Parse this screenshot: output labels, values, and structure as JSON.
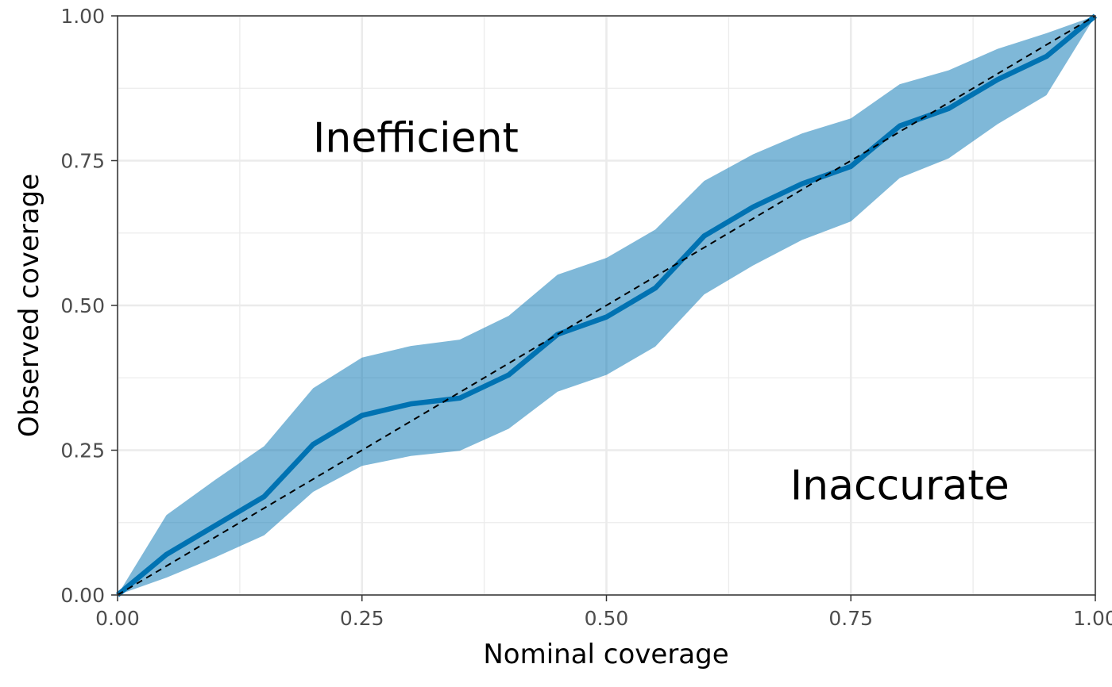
{
  "chart_data": {
    "type": "line",
    "title": "",
    "xlabel": "Nominal coverage",
    "ylabel": "Observed coverage",
    "xlim": [
      0,
      1
    ],
    "ylim": [
      0,
      1
    ],
    "grid": true,
    "x_ticks": [
      "0.00",
      "0.25",
      "0.50",
      "0.75",
      "1.00"
    ],
    "y_ticks": [
      "0.00",
      "0.25",
      "0.50",
      "0.75",
      "1.00"
    ],
    "annotations": [
      {
        "text": "Inefficient",
        "x": 0.305,
        "y": 0.79
      },
      {
        "text": "Inaccurate",
        "x": 0.8,
        "y": 0.19
      }
    ],
    "colors": {
      "line": "#0072B2",
      "band": "#0072B2",
      "reference": "#000000"
    },
    "series": [
      {
        "type": "line",
        "x": [
          0,
          0.05,
          0.1,
          0.15,
          0.2,
          0.25,
          0.3,
          0.35,
          0.4,
          0.45,
          0.5,
          0.55,
          0.6,
          0.65,
          0.7,
          0.75,
          0.8,
          0.85,
          0.9,
          0.95,
          1.0
        ],
        "values": [
          0,
          0.07,
          0.12,
          0.17,
          0.26,
          0.31,
          0.33,
          0.34,
          0.38,
          0.45,
          0.48,
          0.53,
          0.62,
          0.67,
          0.71,
          0.74,
          0.81,
          0.84,
          0.89,
          0.93,
          1.0
        ]
      },
      {
        "type": "band",
        "x": [
          0,
          0.05,
          0.1,
          0.15,
          0.2,
          0.25,
          0.3,
          0.35,
          0.4,
          0.45,
          0.5,
          0.55,
          0.6,
          0.65,
          0.7,
          0.75,
          0.8,
          0.85,
          0.9,
          0.95,
          1.0
        ],
        "lower": [
          0,
          0.03,
          0.065,
          0.103,
          0.178,
          0.223,
          0.24,
          0.249,
          0.287,
          0.351,
          0.38,
          0.429,
          0.519,
          0.569,
          0.613,
          0.645,
          0.72,
          0.754,
          0.813,
          0.863,
          1.0
        ],
        "upper": [
          0,
          0.138,
          0.199,
          0.257,
          0.357,
          0.41,
          0.43,
          0.441,
          0.482,
          0.553,
          0.582,
          0.631,
          0.715,
          0.761,
          0.797,
          0.823,
          0.882,
          0.906,
          0.943,
          0.97,
          1.0
        ]
      },
      {
        "type": "reference",
        "x": [
          0,
          1
        ],
        "values": [
          0,
          1
        ]
      }
    ]
  }
}
